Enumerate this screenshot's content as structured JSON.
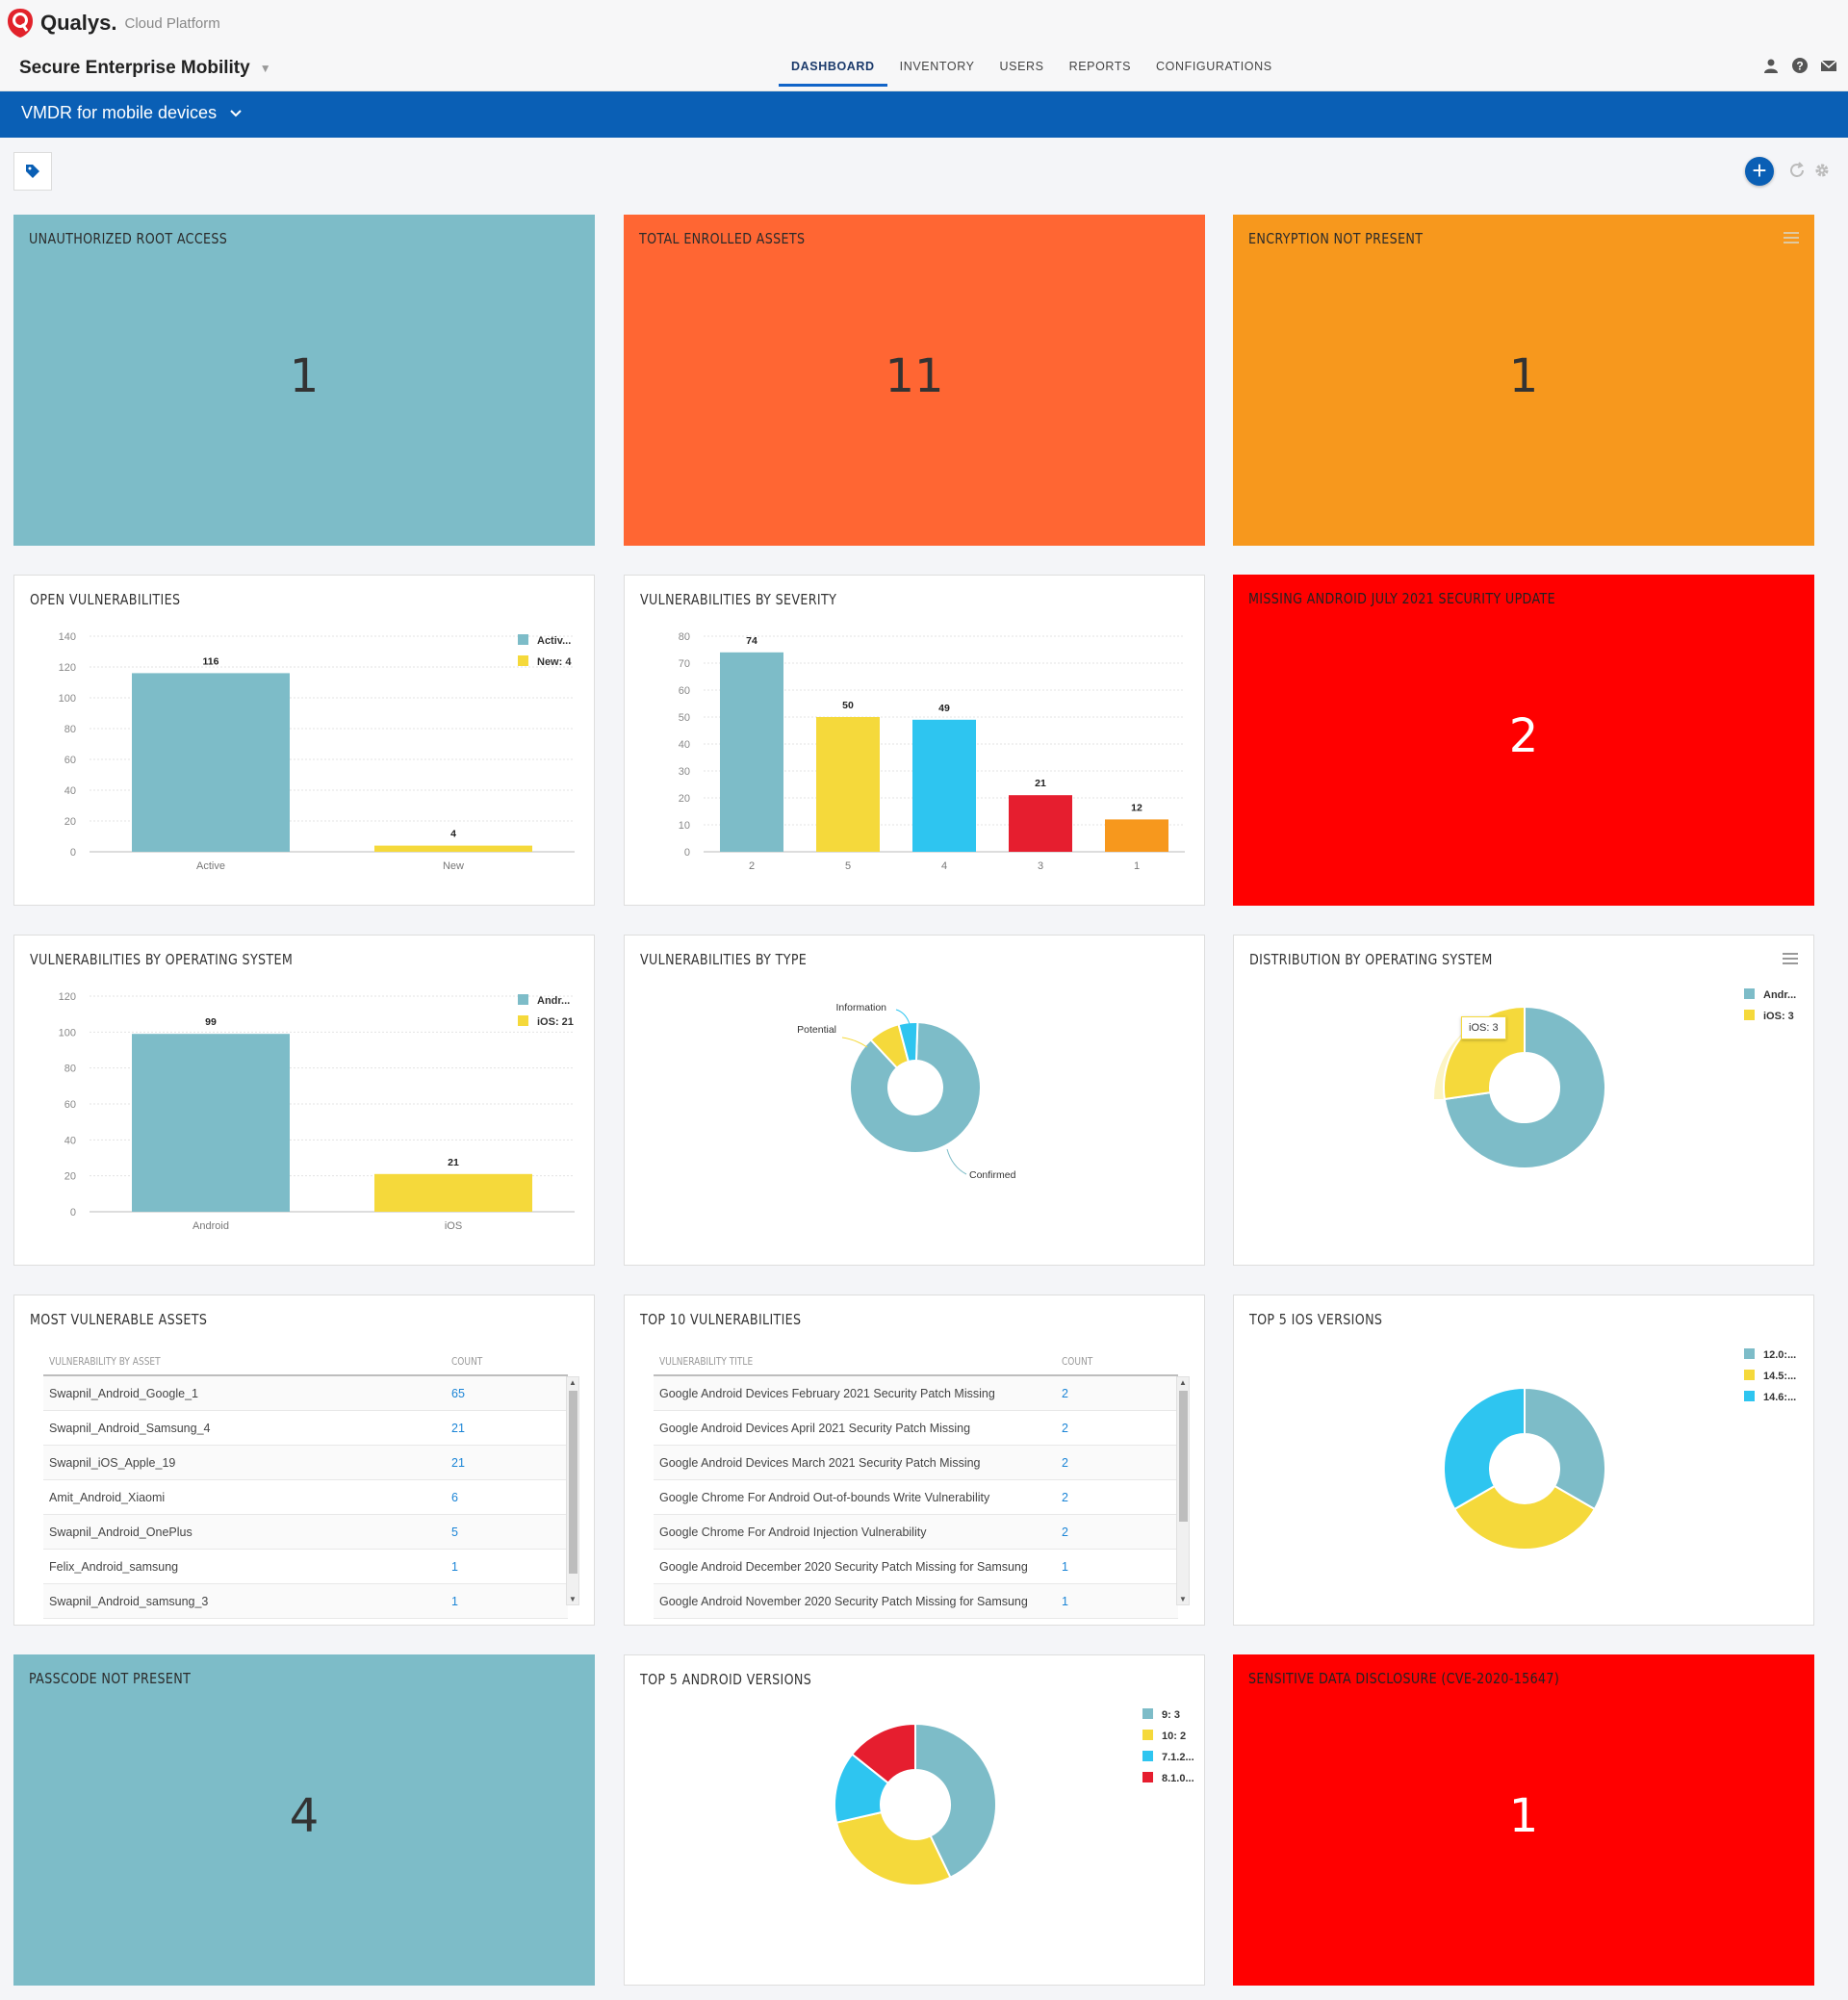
{
  "header": {
    "logo_name": "Qualys.",
    "logo_sub": "Cloud Platform",
    "module": "Secure Enterprise Mobility",
    "nav": [
      "DASHBOARD",
      "INVENTORY",
      "USERS",
      "REPORTS",
      "CONFIGURATIONS"
    ],
    "dashboard_selector": "VMDR for mobile devices"
  },
  "colors": {
    "teal": "#7dbcc8",
    "orange": "#ff6633",
    "amber": "#f7981d",
    "red": "#ff0000",
    "yellow": "#f5d93b",
    "blue": "#2ec5f0",
    "crimson": "#e61e2f",
    "accent": "#0a5fb5"
  },
  "widgets": {
    "unauthorized_root": {
      "title": "UNAUTHORIZED ROOT ACCESS",
      "value": "1"
    },
    "total_enrolled": {
      "title": "TOTAL ENROLLED ASSETS",
      "value": "11"
    },
    "encryption": {
      "title": "ENCRYPTION NOT PRESENT",
      "value": "1"
    },
    "open_vulns": {
      "title": "OPEN VULNERABILITIES"
    },
    "vulns_severity": {
      "title": "VULNERABILITIES BY SEVERITY"
    },
    "missing_android": {
      "title": "MISSING ANDROID JULY 2021 SECURITY UPDATE",
      "value": "2"
    },
    "vulns_os": {
      "title": "VULNERABILITIES BY OPERATING SYSTEM"
    },
    "vulns_type": {
      "title": "VULNERABILITIES BY TYPE"
    },
    "dist_os": {
      "title": "DISTRIBUTION BY OPERATING SYSTEM",
      "tooltip": "iOS: 3"
    },
    "most_vulnerable": {
      "title": "MOST VULNERABLE ASSETS",
      "col1": "VULNERABILITY BY ASSET",
      "col2": "COUNT",
      "rows": [
        [
          "Swapnil_Android_Google_1",
          "65"
        ],
        [
          "Swapnil_Android_Samsung_4",
          "21"
        ],
        [
          "Swapnil_iOS_Apple_19",
          "21"
        ],
        [
          "Amit_Android_Xiaomi",
          "6"
        ],
        [
          "Swapnil_Android_OnePlus",
          "5"
        ],
        [
          "Felix_Android_samsung",
          "1"
        ],
        [
          "Swapnil_Android_samsung_3",
          "1"
        ]
      ]
    },
    "top10": {
      "title": "TOP 10 VULNERABILITIES",
      "col1": "VULNERABILITY TITLE",
      "col2": "COUNT",
      "rows": [
        [
          "Google Android Devices February 2021 Security Patch Missing",
          "2"
        ],
        [
          "Google Android Devices April 2021 Security Patch Missing",
          "2"
        ],
        [
          "Google Android Devices March 2021 Security Patch Missing",
          "2"
        ],
        [
          "Google Chrome For Android Out-of-bounds Write Vulnerability",
          "2"
        ],
        [
          "Google Chrome For Android Injection Vulnerability",
          "2"
        ],
        [
          "Google Android December 2020 Security Patch Missing for Samsung",
          "1"
        ],
        [
          "Google Android November 2020 Security Patch Missing for Samsung",
          "1"
        ]
      ]
    },
    "top5_ios": {
      "title": "TOP 5 IOS VERSIONS"
    },
    "passcode": {
      "title": "PASSCODE NOT PRESENT",
      "value": "4"
    },
    "top5_android": {
      "title": "TOP 5 ANDROID VERSIONS"
    },
    "sensitive": {
      "title": "SENSITIVE DATA DISCLOSURE (CVE-2020-15647)",
      "value": "1"
    }
  },
  "chart_data": [
    {
      "id": "open_vulns",
      "type": "bar",
      "categories": [
        "Active",
        "New"
      ],
      "values": [
        116,
        4
      ],
      "ylim": [
        0,
        140
      ],
      "yticks": [
        0,
        20,
        40,
        60,
        80,
        100,
        120,
        140
      ],
      "legend": [
        "Activ...",
        "New: 4"
      ],
      "colors": [
        "#7dbcc8",
        "#f5d93b"
      ]
    },
    {
      "id": "vulns_severity",
      "type": "bar",
      "categories": [
        "2",
        "5",
        "4",
        "3",
        "1"
      ],
      "values": [
        74,
        50,
        49,
        21,
        12
      ],
      "ylim": [
        0,
        80
      ],
      "yticks": [
        0,
        10,
        20,
        30,
        40,
        50,
        60,
        70,
        80
      ],
      "colors": [
        "#7dbcc8",
        "#f5d93b",
        "#2ec5f0",
        "#e61e2f",
        "#f7981d"
      ]
    },
    {
      "id": "vulns_os",
      "type": "bar",
      "categories": [
        "Android",
        "iOS"
      ],
      "values": [
        99,
        21
      ],
      "ylim": [
        0,
        120
      ],
      "yticks": [
        0,
        20,
        40,
        60,
        80,
        100,
        120
      ],
      "legend": [
        "Andr...",
        "iOS: 21"
      ],
      "colors": [
        "#7dbcc8",
        "#f5d93b"
      ]
    },
    {
      "id": "vulns_type",
      "type": "pie",
      "labels": [
        "Confirmed",
        "Potential",
        "Information"
      ],
      "values": [
        112,
        10,
        6
      ],
      "colors": [
        "#7dbcc8",
        "#f5d93b",
        "#2ec5f0"
      ]
    },
    {
      "id": "dist_os",
      "type": "pie",
      "labels": [
        "Andr...",
        "iOS: 3"
      ],
      "values": [
        8,
        3
      ],
      "colors": [
        "#7dbcc8",
        "#f5d93b"
      ]
    },
    {
      "id": "top5_ios",
      "type": "pie",
      "labels": [
        "12.0:...",
        "14.5:...",
        "14.6:..."
      ],
      "values": [
        1,
        1,
        1
      ],
      "colors": [
        "#7dbcc8",
        "#f5d93b",
        "#2ec5f0"
      ]
    },
    {
      "id": "top5_android",
      "type": "pie",
      "labels": [
        "9: 3",
        "10: 2",
        "7.1.2...",
        "8.1.0..."
      ],
      "values": [
        3,
        2,
        1,
        1
      ],
      "colors": [
        "#7dbcc8",
        "#f5d93b",
        "#2ec5f0",
        "#e61e2f"
      ]
    }
  ]
}
